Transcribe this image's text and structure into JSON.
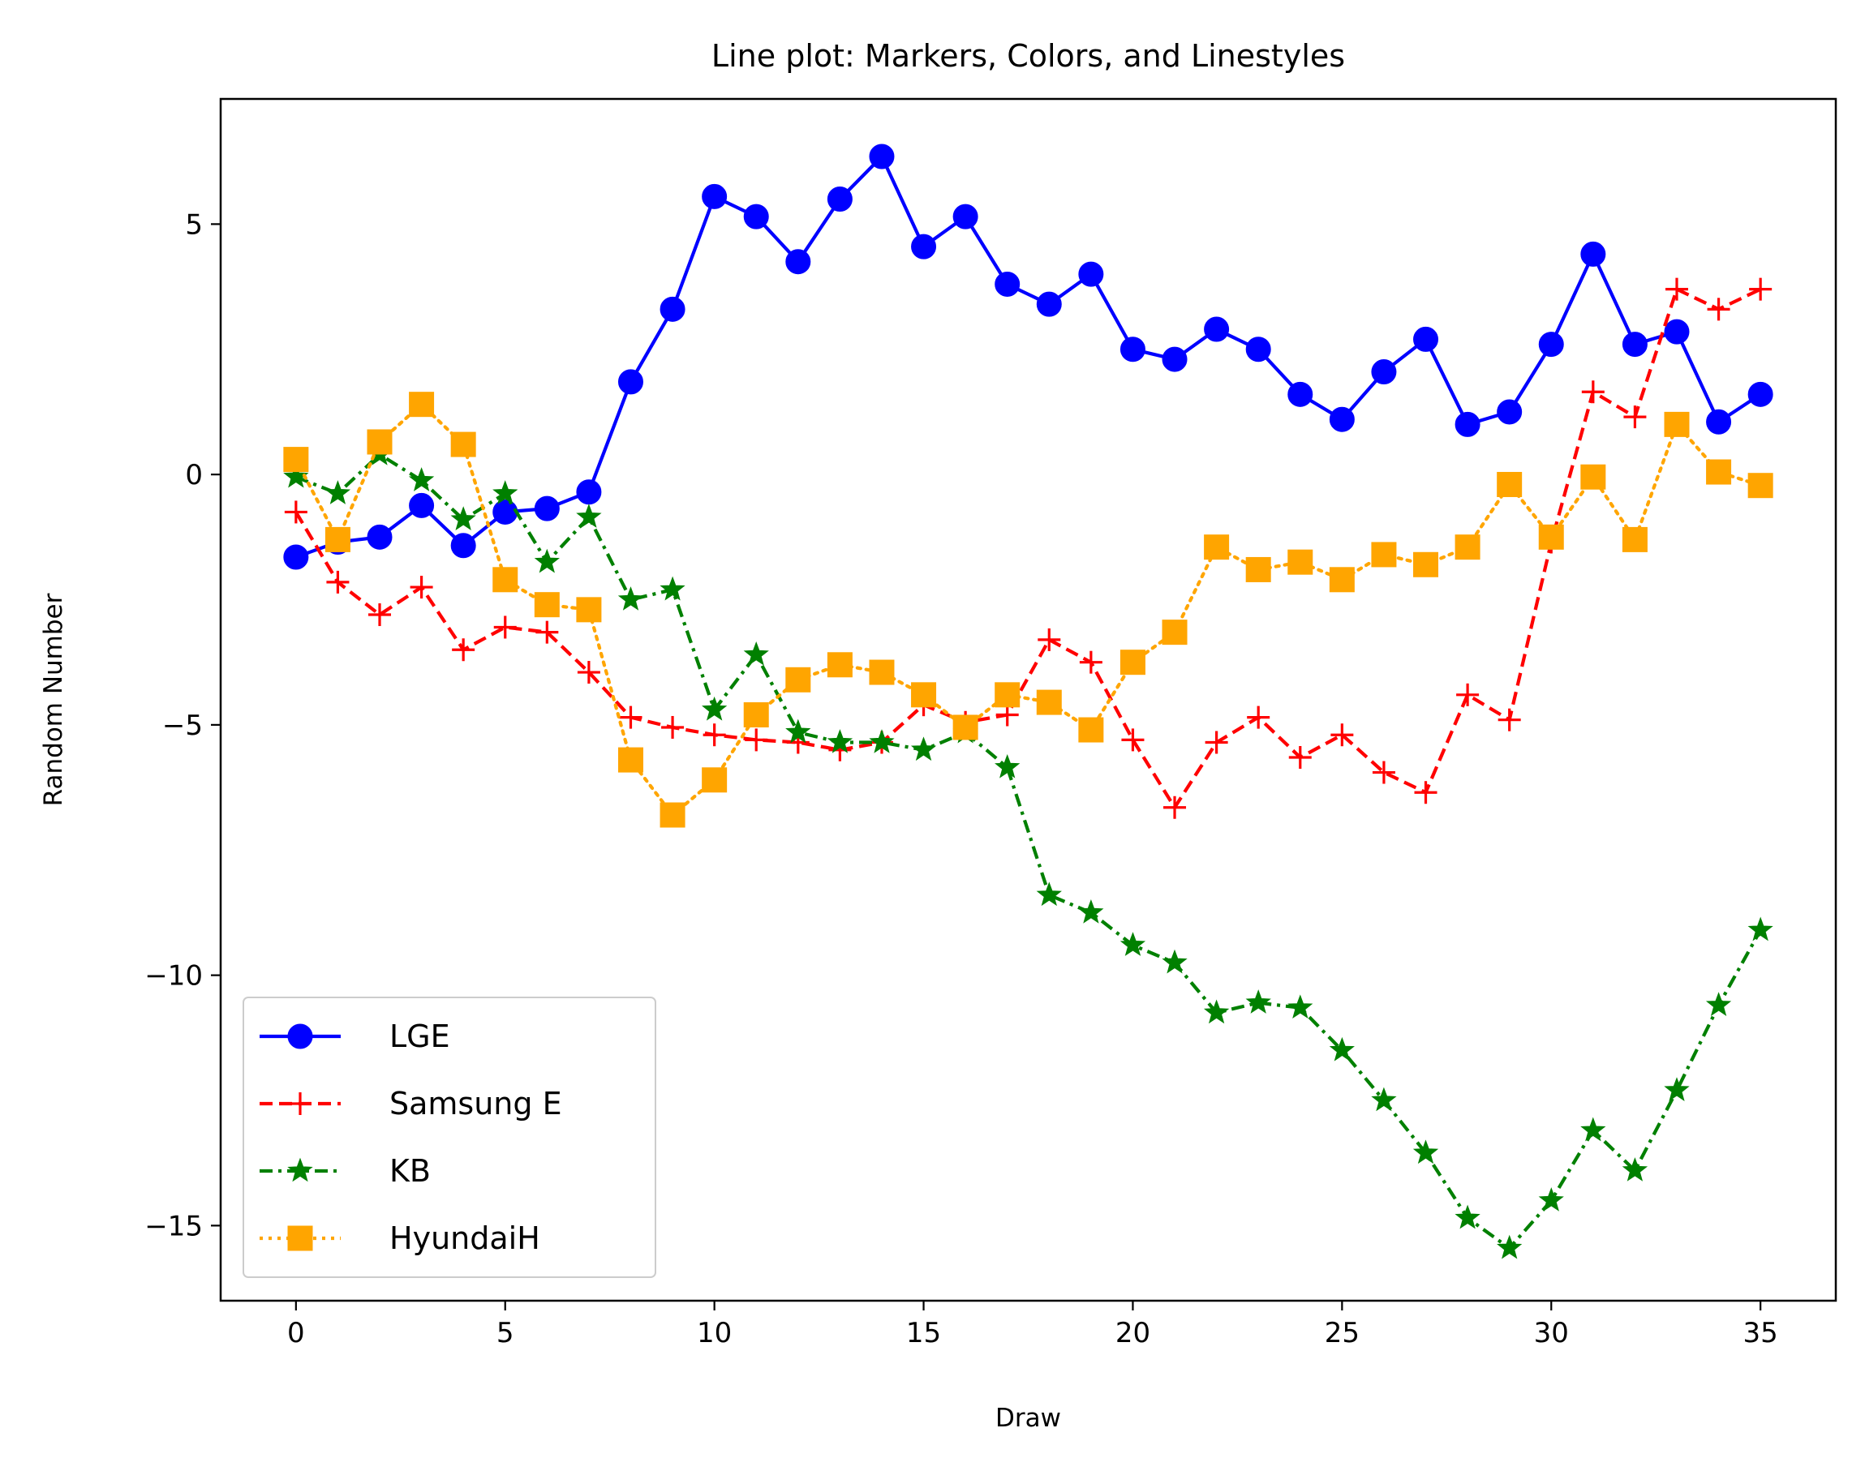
{
  "chart_data": {
    "type": "line",
    "title": "Line plot: Markers, Colors, and Linestyles",
    "xlabel": "Draw",
    "ylabel": "Random Number",
    "xlim": [
      -1.8,
      36.8
    ],
    "ylim": [
      -16.5,
      7.5
    ],
    "xticks": [
      0,
      5,
      10,
      15,
      20,
      25,
      30,
      35
    ],
    "yticks": [
      5,
      0,
      -5,
      -10,
      -15
    ],
    "ytick_labels": [
      "5",
      "0",
      "−5",
      "−10",
      "−15"
    ],
    "grid": false,
    "legend_position": "lower-left",
    "x": [
      0,
      1,
      2,
      3,
      4,
      5,
      6,
      7,
      8,
      9,
      10,
      11,
      12,
      13,
      14,
      15,
      16,
      17,
      18,
      19,
      20,
      21,
      22,
      23,
      24,
      25,
      26,
      27,
      28,
      29,
      30,
      31,
      32,
      33,
      34,
      35
    ],
    "series": [
      {
        "name": "LGE",
        "color": "#0000ff",
        "linestyle": "solid",
        "marker": "circle",
        "values": [
          -1.65,
          -1.35,
          -1.25,
          -0.62,
          -1.42,
          -0.75,
          -0.68,
          -0.35,
          1.85,
          3.3,
          5.55,
          5.15,
          4.25,
          5.5,
          6.35,
          4.55,
          5.15,
          3.8,
          3.4,
          4.0,
          2.5,
          2.3,
          2.9,
          2.5,
          1.6,
          1.1,
          2.05,
          2.7,
          1.0,
          1.25,
          2.6,
          4.4,
          2.6,
          2.85,
          1.05,
          1.6
        ]
      },
      {
        "name": "Samsung E",
        "color": "#ff0000",
        "linestyle": "dashed",
        "marker": "plus",
        "values": [
          -0.75,
          -2.15,
          -2.8,
          -2.25,
          -3.5,
          -3.05,
          -3.15,
          -3.95,
          -4.85,
          -5.05,
          -5.2,
          -5.3,
          -5.35,
          -5.5,
          -5.35,
          -4.6,
          -4.95,
          -4.8,
          -3.3,
          -3.75,
          -5.3,
          -6.65,
          -5.35,
          -4.85,
          -5.65,
          -5.2,
          -5.95,
          -6.35,
          -4.4,
          -4.9,
          -1.35,
          1.65,
          1.15,
          3.7,
          3.3,
          3.7
        ]
      },
      {
        "name": "KB",
        "color": "#008000",
        "linestyle": "dashdot",
        "marker": "star",
        "values": [
          -0.05,
          -0.38,
          0.4,
          -0.12,
          -0.9,
          -0.38,
          -1.75,
          -0.85,
          -2.5,
          -2.3,
          -4.7,
          -3.6,
          -5.15,
          -5.35,
          -5.35,
          -5.5,
          -5.15,
          -5.85,
          -8.4,
          -8.75,
          -9.4,
          -9.75,
          -10.75,
          -10.55,
          -10.65,
          -11.5,
          -12.5,
          -13.55,
          -14.85,
          -15.45,
          -14.5,
          -13.1,
          -13.9,
          -12.3,
          -10.6,
          -9.1
        ]
      },
      {
        "name": "HyundaiH",
        "color": "#ffa500",
        "linestyle": "dotted",
        "marker": "square",
        "values": [
          0.3,
          -1.3,
          0.65,
          1.4,
          0.6,
          -2.1,
          -2.6,
          -2.7,
          -5.7,
          -6.8,
          -6.1,
          -4.8,
          -4.1,
          -3.8,
          -3.95,
          -4.4,
          -5.05,
          -4.4,
          -4.55,
          -5.1,
          -3.75,
          -3.15,
          -1.45,
          -1.9,
          -1.75,
          -2.1,
          -1.6,
          -1.8,
          -1.45,
          -0.2,
          -1.25,
          -0.05,
          -1.3,
          1.0,
          0.05,
          -0.22
        ]
      }
    ]
  }
}
